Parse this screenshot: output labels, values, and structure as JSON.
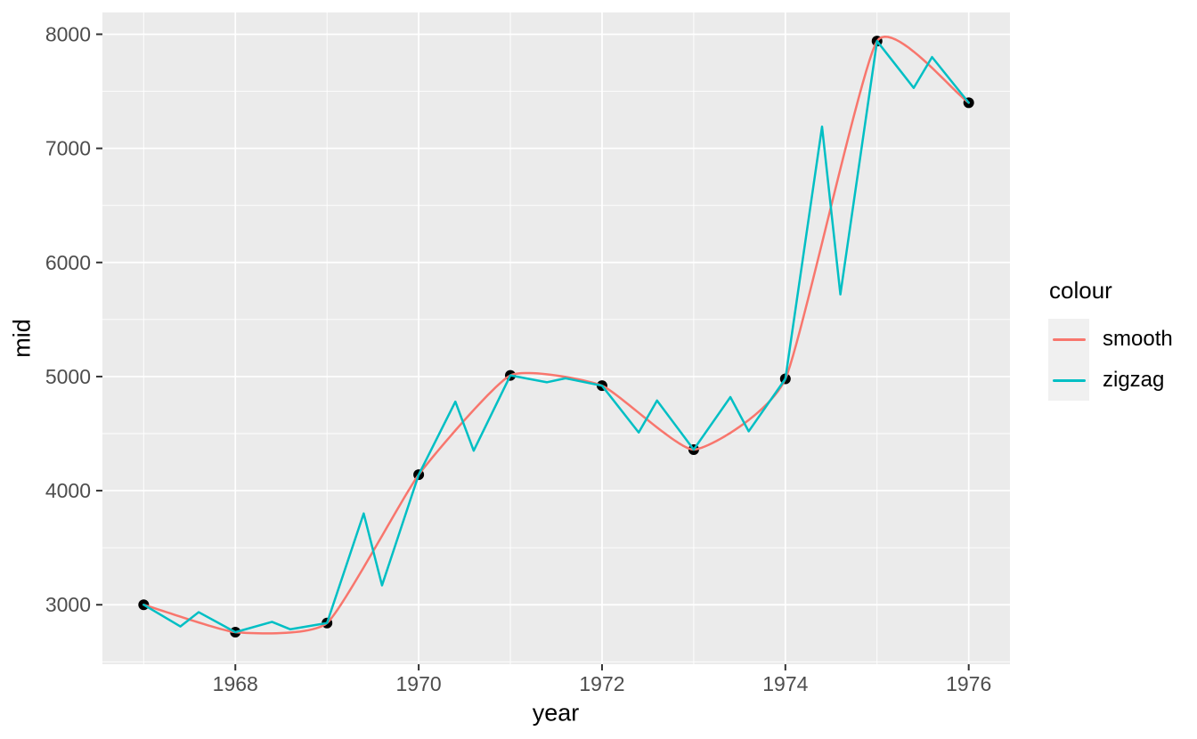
{
  "chart_data": {
    "type": "line",
    "xlabel": "year",
    "ylabel": "mid",
    "xlim": [
      1966.55,
      1976.45
    ],
    "ylim": [
      2479,
      8191
    ],
    "x_major_ticks": [
      1968,
      1970,
      1972,
      1974,
      1976
    ],
    "x_minor_ticks": [
      1967,
      1969,
      1971,
      1973,
      1975
    ],
    "y_major_ticks": [
      3000,
      4000,
      5000,
      6000,
      7000,
      8000
    ],
    "y_minor_ticks": [
      2500,
      3500,
      4500,
      5500,
      6500,
      7500
    ],
    "grid": "on",
    "panel_background": "#EBEBEB",
    "grid_color": "#FFFFFF",
    "axis_text_color": "#4D4D4D",
    "axis_title_color": "#000000",
    "tick_mark_color": "#333333",
    "legend": {
      "title": "colour",
      "position": "right",
      "key_fill": "#F0F0F0",
      "entries": [
        {
          "label": "smooth",
          "color": "#F8766D"
        },
        {
          "label": "zigzag",
          "color": "#00BFC4"
        }
      ]
    },
    "points": {
      "name": "yearly-points",
      "color": "#000000",
      "data": [
        [
          1967,
          3000
        ],
        [
          1968,
          2760
        ],
        [
          1969,
          2840
        ],
        [
          1970,
          4140
        ],
        [
          1971,
          5010
        ],
        [
          1972,
          4920
        ],
        [
          1973,
          4360
        ],
        [
          1974,
          4980
        ],
        [
          1975,
          7940
        ],
        [
          1976,
          7400
        ]
      ]
    },
    "series": [
      {
        "name": "smooth",
        "color": "#F8766D",
        "curve": "spline",
        "points": [
          [
            1967,
            3000
          ],
          [
            1968,
            2760
          ],
          [
            1969,
            2840
          ],
          [
            1970,
            4140
          ],
          [
            1971,
            5010
          ],
          [
            1972,
            4920
          ],
          [
            1973,
            4360
          ],
          [
            1974,
            4980
          ],
          [
            1975,
            7940
          ],
          [
            1976,
            7400
          ]
        ]
      },
      {
        "name": "zigzag",
        "color": "#00BFC4",
        "curve": "linear",
        "points": [
          [
            1967.0,
            3000
          ],
          [
            1967.4,
            2810
          ],
          [
            1967.6,
            2935
          ],
          [
            1968.0,
            2760
          ],
          [
            1968.4,
            2850
          ],
          [
            1968.6,
            2785
          ],
          [
            1969.0,
            2840
          ],
          [
            1969.4,
            3800
          ],
          [
            1969.6,
            3170
          ],
          [
            1970.0,
            4140
          ],
          [
            1970.4,
            4780
          ],
          [
            1970.6,
            4350
          ],
          [
            1971.0,
            5010
          ],
          [
            1971.4,
            4950
          ],
          [
            1971.6,
            4985
          ],
          [
            1972.0,
            4920
          ],
          [
            1972.4,
            4510
          ],
          [
            1972.6,
            4790
          ],
          [
            1973.0,
            4360
          ],
          [
            1973.4,
            4820
          ],
          [
            1973.6,
            4520
          ],
          [
            1974.0,
            4980
          ],
          [
            1974.4,
            7190
          ],
          [
            1974.6,
            5720
          ],
          [
            1975.0,
            7940
          ],
          [
            1975.4,
            7530
          ],
          [
            1975.6,
            7800
          ],
          [
            1976.0,
            7400
          ]
        ]
      }
    ]
  }
}
